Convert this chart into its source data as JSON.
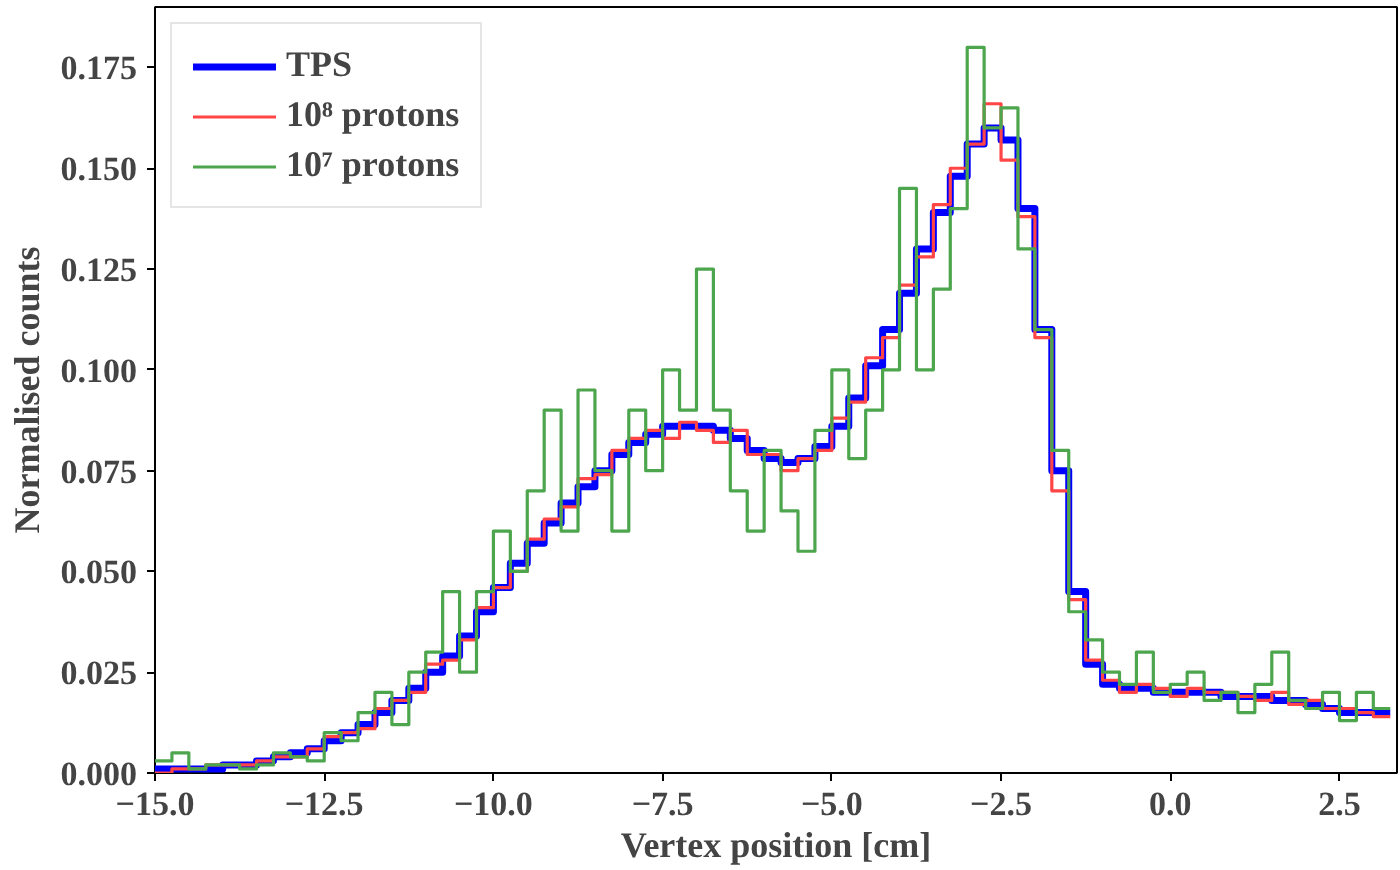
{
  "chart_data": {
    "type": "histogram",
    "xlabel": "Vertex position [cm]",
    "ylabel": "Normalised counts",
    "bins": [
      -15.0,
      -14.75,
      -14.5,
      -14.25,
      -14.0,
      -13.75,
      -13.5,
      -13.25,
      -13.0,
      -12.75,
      -12.5,
      -12.25,
      -12.0,
      -11.75,
      -11.5,
      -11.25,
      -11.0,
      -10.75,
      -10.5,
      -10.25,
      -10.0,
      -9.75,
      -9.5,
      -9.25,
      -9.0,
      -8.75,
      -8.5,
      -8.25,
      -8.0,
      -7.75,
      -7.5,
      -7.25,
      -7.0,
      -6.75,
      -6.5,
      -6.25,
      -6.0,
      -5.75,
      -5.5,
      -5.25,
      -5.0,
      -4.75,
      -4.5,
      -4.25,
      -4.0,
      -3.75,
      -3.5,
      -3.25,
      -3.0,
      -2.75,
      -2.5,
      -2.25,
      -2.0,
      -1.75,
      -1.5,
      -1.25,
      -1.0,
      -0.75,
      -0.5,
      -0.25,
      0.0,
      0.25,
      0.5,
      0.75,
      1.0,
      1.25,
      1.5,
      1.75,
      2.0,
      2.25,
      2.5,
      2.75,
      3.0,
      3.25
    ],
    "series": [
      {
        "name": "TPS",
        "color": "#0000ff",
        "values": [
          0.001,
          0.001,
          0.001,
          0.001,
          0.002,
          0.002,
          0.003,
          0.004,
          0.005,
          0.006,
          0.008,
          0.01,
          0.012,
          0.015,
          0.018,
          0.021,
          0.025,
          0.029,
          0.034,
          0.04,
          0.046,
          0.052,
          0.057,
          0.062,
          0.067,
          0.071,
          0.075,
          0.079,
          0.082,
          0.084,
          0.086,
          0.086,
          0.086,
          0.085,
          0.083,
          0.08,
          0.078,
          0.077,
          0.078,
          0.081,
          0.086,
          0.093,
          0.101,
          0.11,
          0.119,
          0.13,
          0.139,
          0.148,
          0.156,
          0.16,
          0.157,
          0.14,
          0.11,
          0.075,
          0.045,
          0.027,
          0.022,
          0.021,
          0.021,
          0.02,
          0.02,
          0.02,
          0.02,
          0.019,
          0.019,
          0.019,
          0.018,
          0.018,
          0.017,
          0.016,
          0.015,
          0.015,
          0.015
        ]
      },
      {
        "name": "10⁸ protons",
        "color": "#ff4545",
        "values": [
          0.0,
          0.001,
          0.001,
          0.002,
          0.002,
          0.002,
          0.003,
          0.004,
          0.004,
          0.006,
          0.009,
          0.01,
          0.011,
          0.016,
          0.018,
          0.02,
          0.027,
          0.028,
          0.033,
          0.041,
          0.046,
          0.05,
          0.058,
          0.063,
          0.066,
          0.073,
          0.074,
          0.08,
          0.083,
          0.085,
          0.083,
          0.087,
          0.085,
          0.082,
          0.085,
          0.079,
          0.079,
          0.075,
          0.078,
          0.08,
          0.088,
          0.092,
          0.103,
          0.108,
          0.121,
          0.128,
          0.141,
          0.15,
          0.156,
          0.166,
          0.152,
          0.138,
          0.108,
          0.07,
          0.043,
          0.028,
          0.023,
          0.02,
          0.022,
          0.021,
          0.019,
          0.021,
          0.02,
          0.02,
          0.019,
          0.018,
          0.02,
          0.017,
          0.018,
          0.016,
          0.016,
          0.015,
          0.014
        ]
      },
      {
        "name": "10⁷ protons",
        "color": "#4da64d",
        "values": [
          0.003,
          0.005,
          0.001,
          0.002,
          0.002,
          0.001,
          0.002,
          0.005,
          0.004,
          0.003,
          0.01,
          0.008,
          0.015,
          0.02,
          0.012,
          0.025,
          0.03,
          0.045,
          0.025,
          0.045,
          0.06,
          0.05,
          0.07,
          0.09,
          0.06,
          0.095,
          0.075,
          0.06,
          0.09,
          0.075,
          0.1,
          0.09,
          0.125,
          0.09,
          0.07,
          0.06,
          0.08,
          0.065,
          0.055,
          0.085,
          0.1,
          0.078,
          0.09,
          0.1,
          0.145,
          0.1,
          0.12,
          0.14,
          0.18,
          0.16,
          0.165,
          0.13,
          0.11,
          0.08,
          0.04,
          0.033,
          0.025,
          0.022,
          0.03,
          0.02,
          0.022,
          0.025,
          0.018,
          0.02,
          0.015,
          0.022,
          0.03,
          0.018,
          0.016,
          0.02,
          0.013,
          0.02,
          0.016
        ]
      }
    ],
    "xlim": [
      -15.0,
      3.35
    ],
    "ylim": [
      0.0,
      0.19
    ],
    "xticks": [
      {
        "value": -15.0,
        "label": "−15.0"
      },
      {
        "value": -12.5,
        "label": "−12.5"
      },
      {
        "value": -10.0,
        "label": "−10.0"
      },
      {
        "value": -7.5,
        "label": "−7.5"
      },
      {
        "value": -5.0,
        "label": "−5.0"
      },
      {
        "value": -2.5,
        "label": "−2.5"
      },
      {
        "value": 0.0,
        "label": "0.0"
      },
      {
        "value": 2.5,
        "label": "2.5"
      }
    ],
    "yticks": [
      {
        "value": 0.0,
        "label": "0.000"
      },
      {
        "value": 0.025,
        "label": "0.025"
      },
      {
        "value": 0.05,
        "label": "0.050"
      },
      {
        "value": 0.075,
        "label": "0.075"
      },
      {
        "value": 0.1,
        "label": "0.100"
      },
      {
        "value": 0.125,
        "label": "0.125"
      },
      {
        "value": 0.15,
        "label": "0.150"
      },
      {
        "value": 0.175,
        "label": "0.175"
      }
    ],
    "grid": false,
    "legend": "top left"
  }
}
